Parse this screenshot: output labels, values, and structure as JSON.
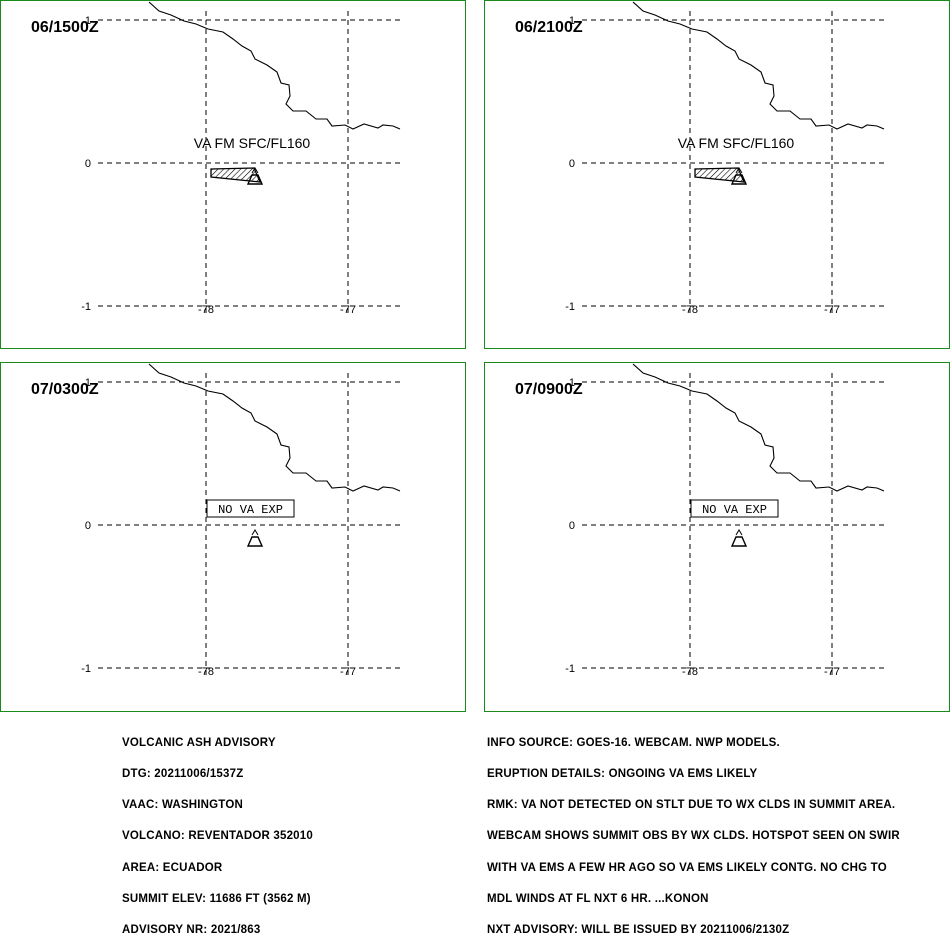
{
  "panels": [
    {
      "time": "06/1500Z",
      "label": "VA FM SFC/FL160",
      "type": "plume"
    },
    {
      "time": "06/2100Z",
      "label": "VA FM SFC/FL160",
      "type": "plume"
    },
    {
      "time": "07/0300Z",
      "label": "NO VA EXP",
      "type": "nova"
    },
    {
      "time": "07/0900Z",
      "label": "NO VA EXP",
      "type": "nova"
    }
  ],
  "axes": {
    "lat_labels": [
      "1",
      "0",
      "-1"
    ],
    "lon_labels": [
      "-78",
      "-77"
    ]
  },
  "advisory_left": [
    "VOLCANIC ASH ADVISORY",
    "DTG: 20211006/1537Z",
    "VAAC: WASHINGTON",
    "VOLCANO: REVENTADOR 352010",
    "AREA: ECUADOR",
    "SUMMIT ELEV: 11686 FT (3562 M)",
    "ADVISORY NR: 2021/863"
  ],
  "advisory_right": [
    "INFO SOURCE: GOES-16. WEBCAM. NWP MODELS.",
    "ERUPTION DETAILS: ONGOING VA EMS LIKELY",
    "RMK: VA NOT DETECTED ON STLT DUE TO WX CLDS IN SUMMIT AREA.",
    "WEBCAM SHOWS SUMMIT OBS BY WX CLDS. HOTSPOT SEEN ON SWIR",
    "WITH VA EMS A FEW HR AGO SO VA EMS LIKELY CONTG. NO CHG TO",
    "MDL WINDS AT FL NXT 6 HR. ...KONON",
    "NXT ADVISORY: WILL BE ISSUED BY 20211006/2130Z"
  ],
  "colors": {
    "frame": "#1a8a1a",
    "ink": "#000000"
  }
}
